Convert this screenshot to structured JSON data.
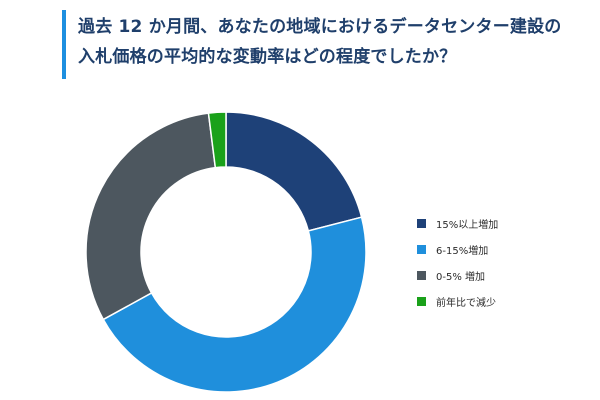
{
  "title": "過去 12 か月間、あなたの地域におけるデータセンター建設の入札価格の平均的な変動率はどの程度でしたか？",
  "chart_data": {
    "type": "pie",
    "donut": true,
    "title": "過去 12 か月間、あなたの地域におけるデータセンター建設の入札価格の平均的な変動率はどの程度でしたか？",
    "categories": [
      "15%以上増加",
      "6-15%増加",
      "0-5% 増加",
      "前年比で減少"
    ],
    "values": [
      21,
      46,
      31,
      2
    ],
    "colors": [
      "#1e4178",
      "#1f8fdc",
      "#4d575f",
      "#1aa11a"
    ],
    "legend_position": "right"
  }
}
